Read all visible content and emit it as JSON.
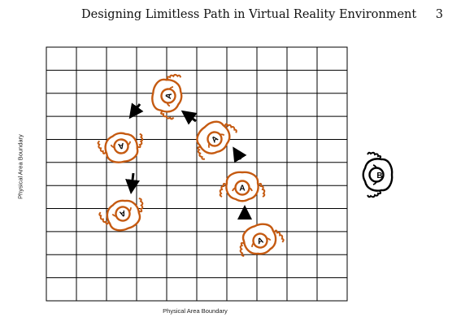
{
  "header": {
    "running_title": "Designing Limitless Path in Virtual Reality Environment",
    "page_number": "3"
  },
  "figure": {
    "left_axis_label": "Physical Area Boundary",
    "bottom_axis_label": "Physical Area Boundary",
    "user_a_label": "A",
    "user_b_label": "B",
    "colors": {
      "user_a": "#c55a11",
      "user_b": "#000000",
      "grid": "#000000",
      "arrow": "#000000"
    },
    "icons": [
      "person-top-view-icon",
      "arrow-icon"
    ]
  }
}
